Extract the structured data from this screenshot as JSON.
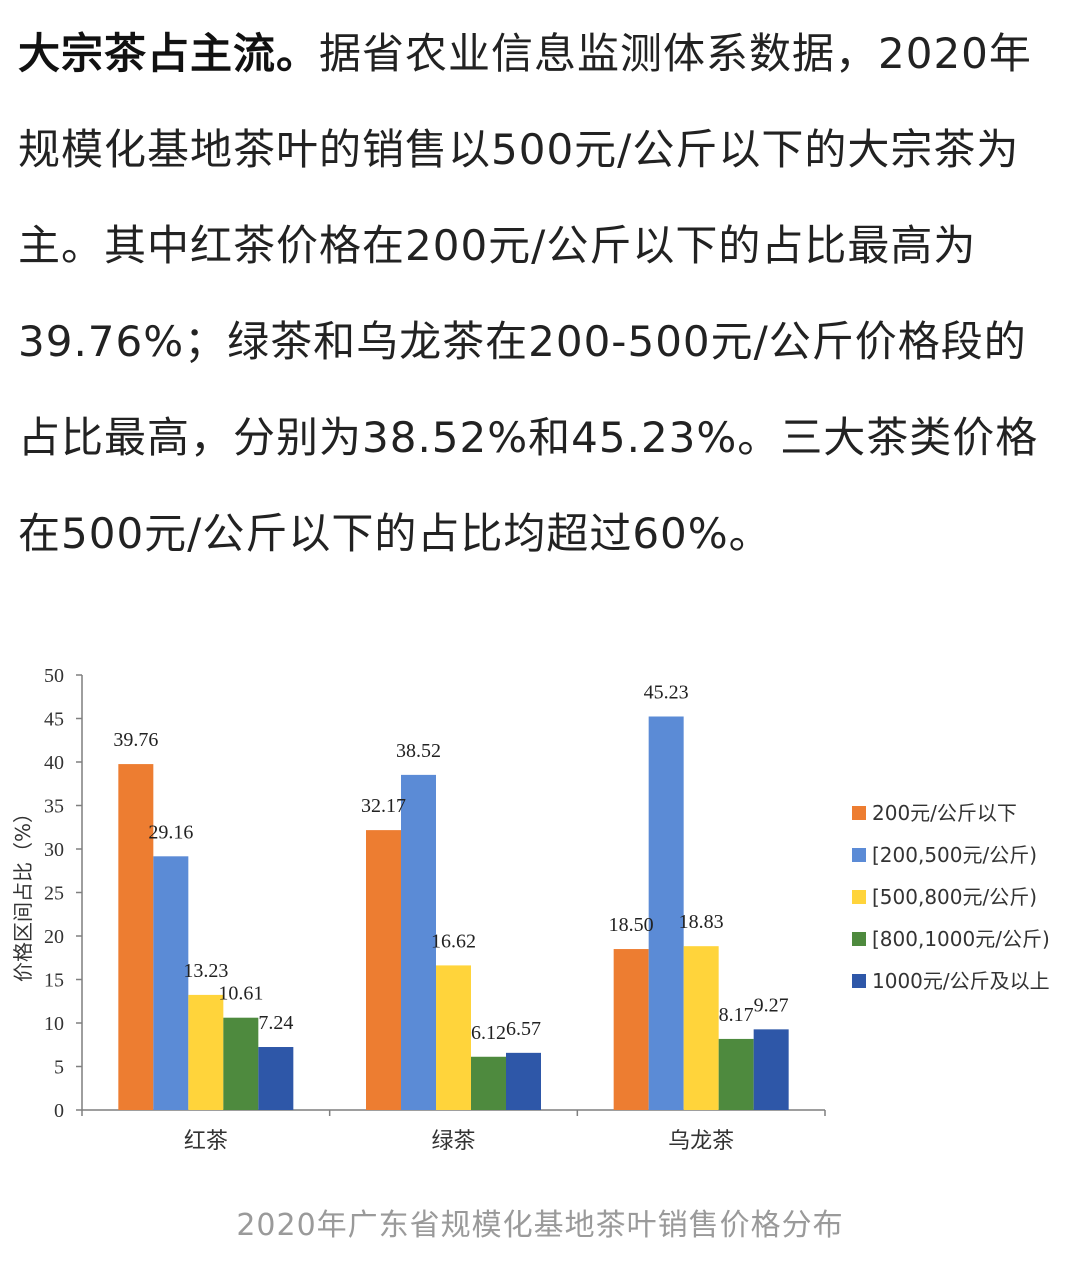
{
  "article": {
    "lead": "大宗茶占主流。",
    "body": "据省农业信息监测体系数据，2020年规模化基地茶叶的销售以500元/公斤以下的大宗茶为主。其中红茶价格在200元/公斤以下的占比最高为39.76%；绿茶和乌龙茶在200-500元/公斤价格段的占比最高，分别为38.52%和45.23%。三大茶类价格在500元/公斤以下的占比均超过60%。"
  },
  "caption": "2020年广东省规模化基地茶叶销售价格分布",
  "colors": {
    "series1": "#ED7D31",
    "series2": "#5B8BD6",
    "series3": "#FFD43B",
    "series4": "#4E8A3E",
    "series5": "#2E57A8",
    "axis": "#7f7f7f"
  },
  "chart_data": {
    "type": "bar",
    "title": "",
    "xlabel": "",
    "ylabel": "价格区间占比（%）",
    "ylim": [
      0,
      50
    ],
    "yticks": [
      0,
      5,
      10,
      15,
      20,
      25,
      30,
      35,
      40,
      45,
      50
    ],
    "categories": [
      "红茶",
      "绿茶",
      "乌龙茶"
    ],
    "legend_position": "right",
    "grid": false,
    "series": [
      {
        "name": "200元/公斤以下",
        "values": [
          39.76,
          32.17,
          18.5
        ],
        "labels": [
          "39.76",
          "32.17",
          "18.50"
        ]
      },
      {
        "name": "[200,500元/公斤)",
        "values": [
          29.16,
          38.52,
          45.23
        ],
        "labels": [
          "29.16",
          "38.52",
          "45.23"
        ]
      },
      {
        "name": "[500,800元/公斤)",
        "values": [
          13.23,
          16.62,
          18.83
        ],
        "labels": [
          "13.23",
          "16.62",
          "18.83"
        ]
      },
      {
        "name": "[800,1000元/公斤)",
        "values": [
          10.61,
          6.12,
          8.17
        ],
        "labels": [
          "10.61",
          "6.12",
          "8.17"
        ]
      },
      {
        "name": "1000元/公斤及以上",
        "values": [
          7.24,
          6.57,
          9.27
        ],
        "labels": [
          "7.24",
          "6.57",
          "9.27"
        ]
      }
    ]
  }
}
